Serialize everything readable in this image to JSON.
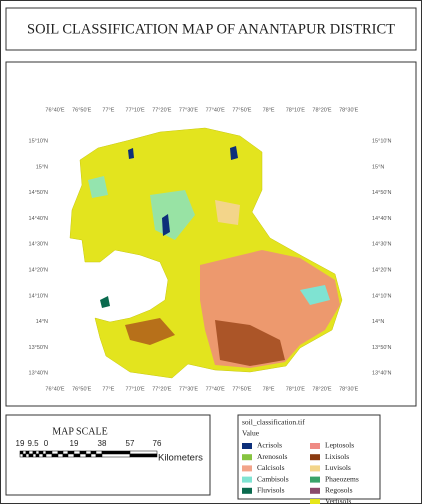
{
  "header": {
    "title": "SOIL CLASSIFICATION MAP OF ANANTAPUR DISTRICT"
  },
  "map": {
    "x_labels": [
      "76°40'E",
      "76°50'E",
      "77°E",
      "77°10'E",
      "77°20'E",
      "77°30'E",
      "77°40'E",
      "77°50'E",
      "78°E",
      "78°10'E",
      "78°20'E",
      "78°30'E"
    ],
    "y_labels": [
      "15°10'N",
      "15°N",
      "14°50'N",
      "14°40'N",
      "14°30'N",
      "14°20'N",
      "14°10'N",
      "14°N",
      "13°50'N",
      "13°40'N"
    ]
  },
  "scale": {
    "title": "MAP SCALE",
    "ticks": [
      "19",
      "9.5",
      "0",
      "19",
      "38",
      "57",
      "76"
    ],
    "unit": "Kilometers"
  },
  "legend": {
    "title": "soil_classification.tif",
    "subtitle": "Value",
    "items": [
      {
        "label": "Acrisols",
        "color": "#0d2f7a"
      },
      {
        "label": "Arenosols",
        "color": "#86c440"
      },
      {
        "label": "Calcisols",
        "color": "#f2a48a"
      },
      {
        "label": "Cambisols",
        "color": "#7fe3d2"
      },
      {
        "label": "Fluvisols",
        "color": "#0a6a4e"
      },
      {
        "label": "Leptosols",
        "color": "#ef8a84"
      },
      {
        "label": "Lixisols",
        "color": "#8a3a10"
      },
      {
        "label": "Luvisols",
        "color": "#f3d58a"
      },
      {
        "label": "Phaeozems",
        "color": "#3aa36a"
      },
      {
        "label": "Regosols",
        "color": "#8a4a6a"
      },
      {
        "label": "Vertisols",
        "color": "#e6e619"
      }
    ]
  }
}
